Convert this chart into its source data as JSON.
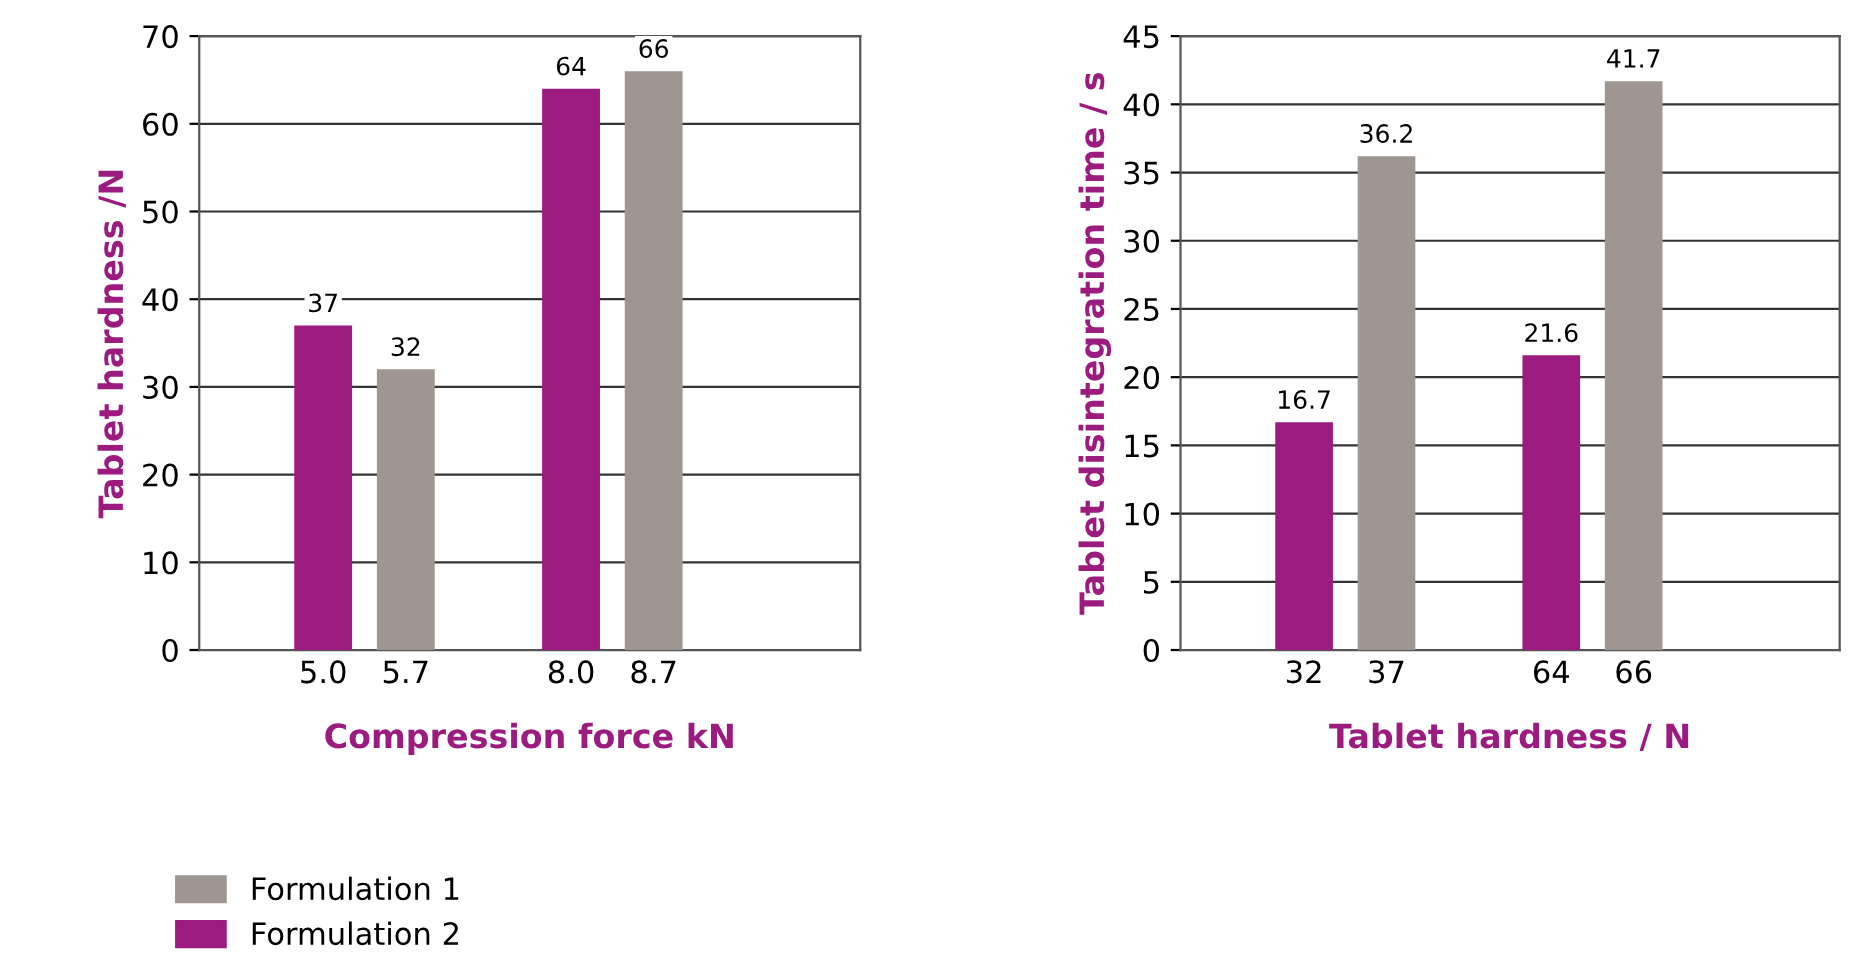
{
  "chart_data": [
    {
      "type": "bar",
      "xlabel": "Compression force kN",
      "ylabel": "Tablet hardness /N",
      "categories": [
        null,
        "5.0",
        "5.7",
        null,
        "8.0",
        "8.7",
        null
      ],
      "series": [
        {
          "name": "Formulation 1",
          "color": "#9e9690",
          "values": [
            null,
            null,
            32,
            null,
            null,
            66,
            null
          ]
        },
        {
          "name": "Formulation 2",
          "color": "#9b1b7e",
          "values": [
            null,
            37,
            null,
            null,
            64,
            null,
            null
          ]
        }
      ],
      "ylim": [
        0,
        70
      ],
      "yticks": [
        0,
        10,
        20,
        30,
        40,
        50,
        60,
        70
      ],
      "grid": "y",
      "data_labels": true,
      "legend": "bottom"
    },
    {
      "type": "bar",
      "xlabel": "Tablet hardness / N",
      "ylabel": "Tablet disintegration time / s",
      "categories": [
        null,
        "32",
        "37",
        null,
        "64",
        "66",
        null
      ],
      "series": [
        {
          "color": "#9e9690",
          "values": [
            null,
            null,
            36.2,
            null,
            null,
            41.7,
            null
          ]
        },
        {
          "color": "#9b1b7e",
          "values": [
            null,
            16.7,
            null,
            null,
            21.6,
            null,
            null
          ]
        }
      ],
      "ylim": [
        0,
        45
      ],
      "yticks": [
        0,
        5,
        10,
        15,
        20,
        25,
        30,
        35,
        40,
        45
      ],
      "grid": "y",
      "data_labels": true
    }
  ]
}
